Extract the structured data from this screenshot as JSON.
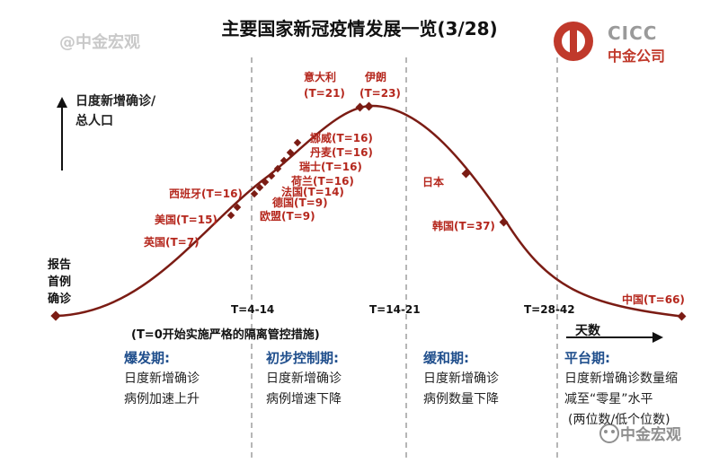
{
  "title": "主要国家新冠疫情发展一览(3/28)",
  "watermark": "@中金宏观",
  "logo": {
    "en": "CICC",
    "cn": "中金公司"
  },
  "y_axis_label": [
    "日度新增确诊/",
    "总人口"
  ],
  "first_case_label": [
    "报告",
    "首例",
    "确诊"
  ],
  "x_ticks": [
    "T=4-14",
    "T=14-21",
    "T=28-42"
  ],
  "x_note": "(T=0开始实施严格的隔离管控措施)",
  "x_axis_label": "天数",
  "countries": [
    {
      "label": "英国(T=7)"
    },
    {
      "label": "美国(T=15)"
    },
    {
      "label": "西班牙(T=16)"
    },
    {
      "label": "欧盟(T=9)"
    },
    {
      "label": "德国(T=9)"
    },
    {
      "label": "法国(T=14)"
    },
    {
      "label": "荷兰(T=16)"
    },
    {
      "label": "瑞士(T=16)"
    },
    {
      "label": "丹麦(T=16)"
    },
    {
      "label": "挪威(T=16)"
    },
    {
      "label": "意大利"
    },
    {
      "label": "(T=21)"
    },
    {
      "label": "伊朗"
    },
    {
      "label": "(T=23)"
    },
    {
      "label": "日本"
    },
    {
      "label": "韩国(T=37)"
    },
    {
      "label": "中国(T=66)"
    }
  ],
  "phases": [
    {
      "name": "爆发期:",
      "desc": [
        "日度新增确诊",
        "病例加速上升"
      ]
    },
    {
      "name": "初步控制期:",
      "desc": [
        "日度新增确诊",
        "病例增速下降"
      ]
    },
    {
      "name": "缓和期:",
      "desc": [
        "日度新增确诊",
        "病例数量下降"
      ]
    },
    {
      "name": "平台期:",
      "desc": [
        "日度新增确诊数量缩",
        "减至“零星”水平",
        "(两位数/低个位数)"
      ]
    }
  ],
  "footer_watermark": "中金宏观",
  "colors": {
    "curve": "#7b1c14",
    "annotation": "#b5271d",
    "phase_title": "#1f4e8c",
    "dashed": "#9e9e9e"
  }
}
